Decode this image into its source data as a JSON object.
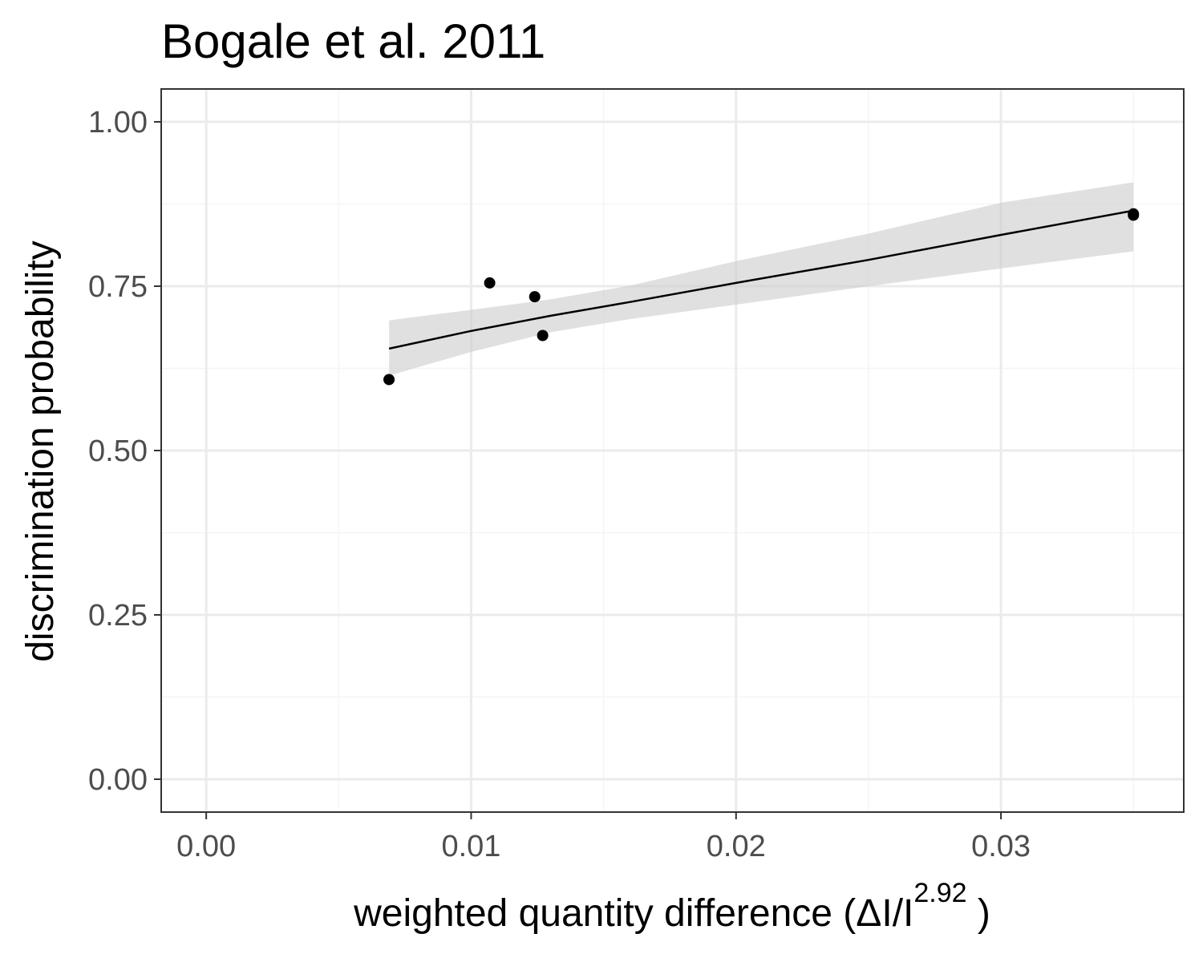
{
  "chart_data": {
    "type": "scatter",
    "title": "Bogale et al. 2011",
    "xlabel": {
      "main": "weighted  quantity  difference (ΔI/I",
      "superscript": "2.92",
      "close": " )"
    },
    "ylabel": "discrimination probability",
    "xlim": [
      -0.0017,
      0.0369
    ],
    "ylim": [
      -0.05,
      1.05
    ],
    "x_ticks": [
      0.0,
      0.01,
      0.02,
      0.03
    ],
    "x_tick_labels": [
      "0.00",
      "0.01",
      "0.02",
      "0.03"
    ],
    "y_ticks": [
      0.0,
      0.25,
      0.5,
      0.75,
      1.0
    ],
    "y_tick_labels": [
      "0.00",
      "0.25",
      "0.50",
      "0.75",
      "1.00"
    ],
    "x_minor": [
      0.005,
      0.015,
      0.025,
      0.035
    ],
    "y_minor": [
      0.125,
      0.375,
      0.625,
      0.875
    ],
    "grid": true,
    "points": [
      {
        "x": 0.0069,
        "y": 0.608
      },
      {
        "x": 0.0107,
        "y": 0.755
      },
      {
        "x": 0.0124,
        "y": 0.734
      },
      {
        "x": 0.0127,
        "y": 0.675
      },
      {
        "x": 0.035,
        "y": 0.858
      },
      {
        "x": 0.035,
        "y": 0.86
      }
    ],
    "fit": {
      "x": [
        0.0069,
        0.01,
        0.013,
        0.016,
        0.02,
        0.025,
        0.03,
        0.035
      ],
      "y": [
        0.655,
        0.682,
        0.705,
        0.726,
        0.755,
        0.79,
        0.828,
        0.865
      ],
      "lower": [
        0.614,
        0.65,
        0.68,
        0.7,
        0.722,
        0.75,
        0.777,
        0.803
      ],
      "upper": [
        0.698,
        0.714,
        0.73,
        0.751,
        0.788,
        0.83,
        0.877,
        0.908
      ]
    },
    "colors": {
      "points": "#000000",
      "fit_line": "#000000",
      "ribbon": "#cccccc",
      "grid_major": "#ebebeb",
      "grid_minor": "#f5f5f5",
      "panel_border": "#333333",
      "tick_text": "#4d4d4d"
    }
  }
}
